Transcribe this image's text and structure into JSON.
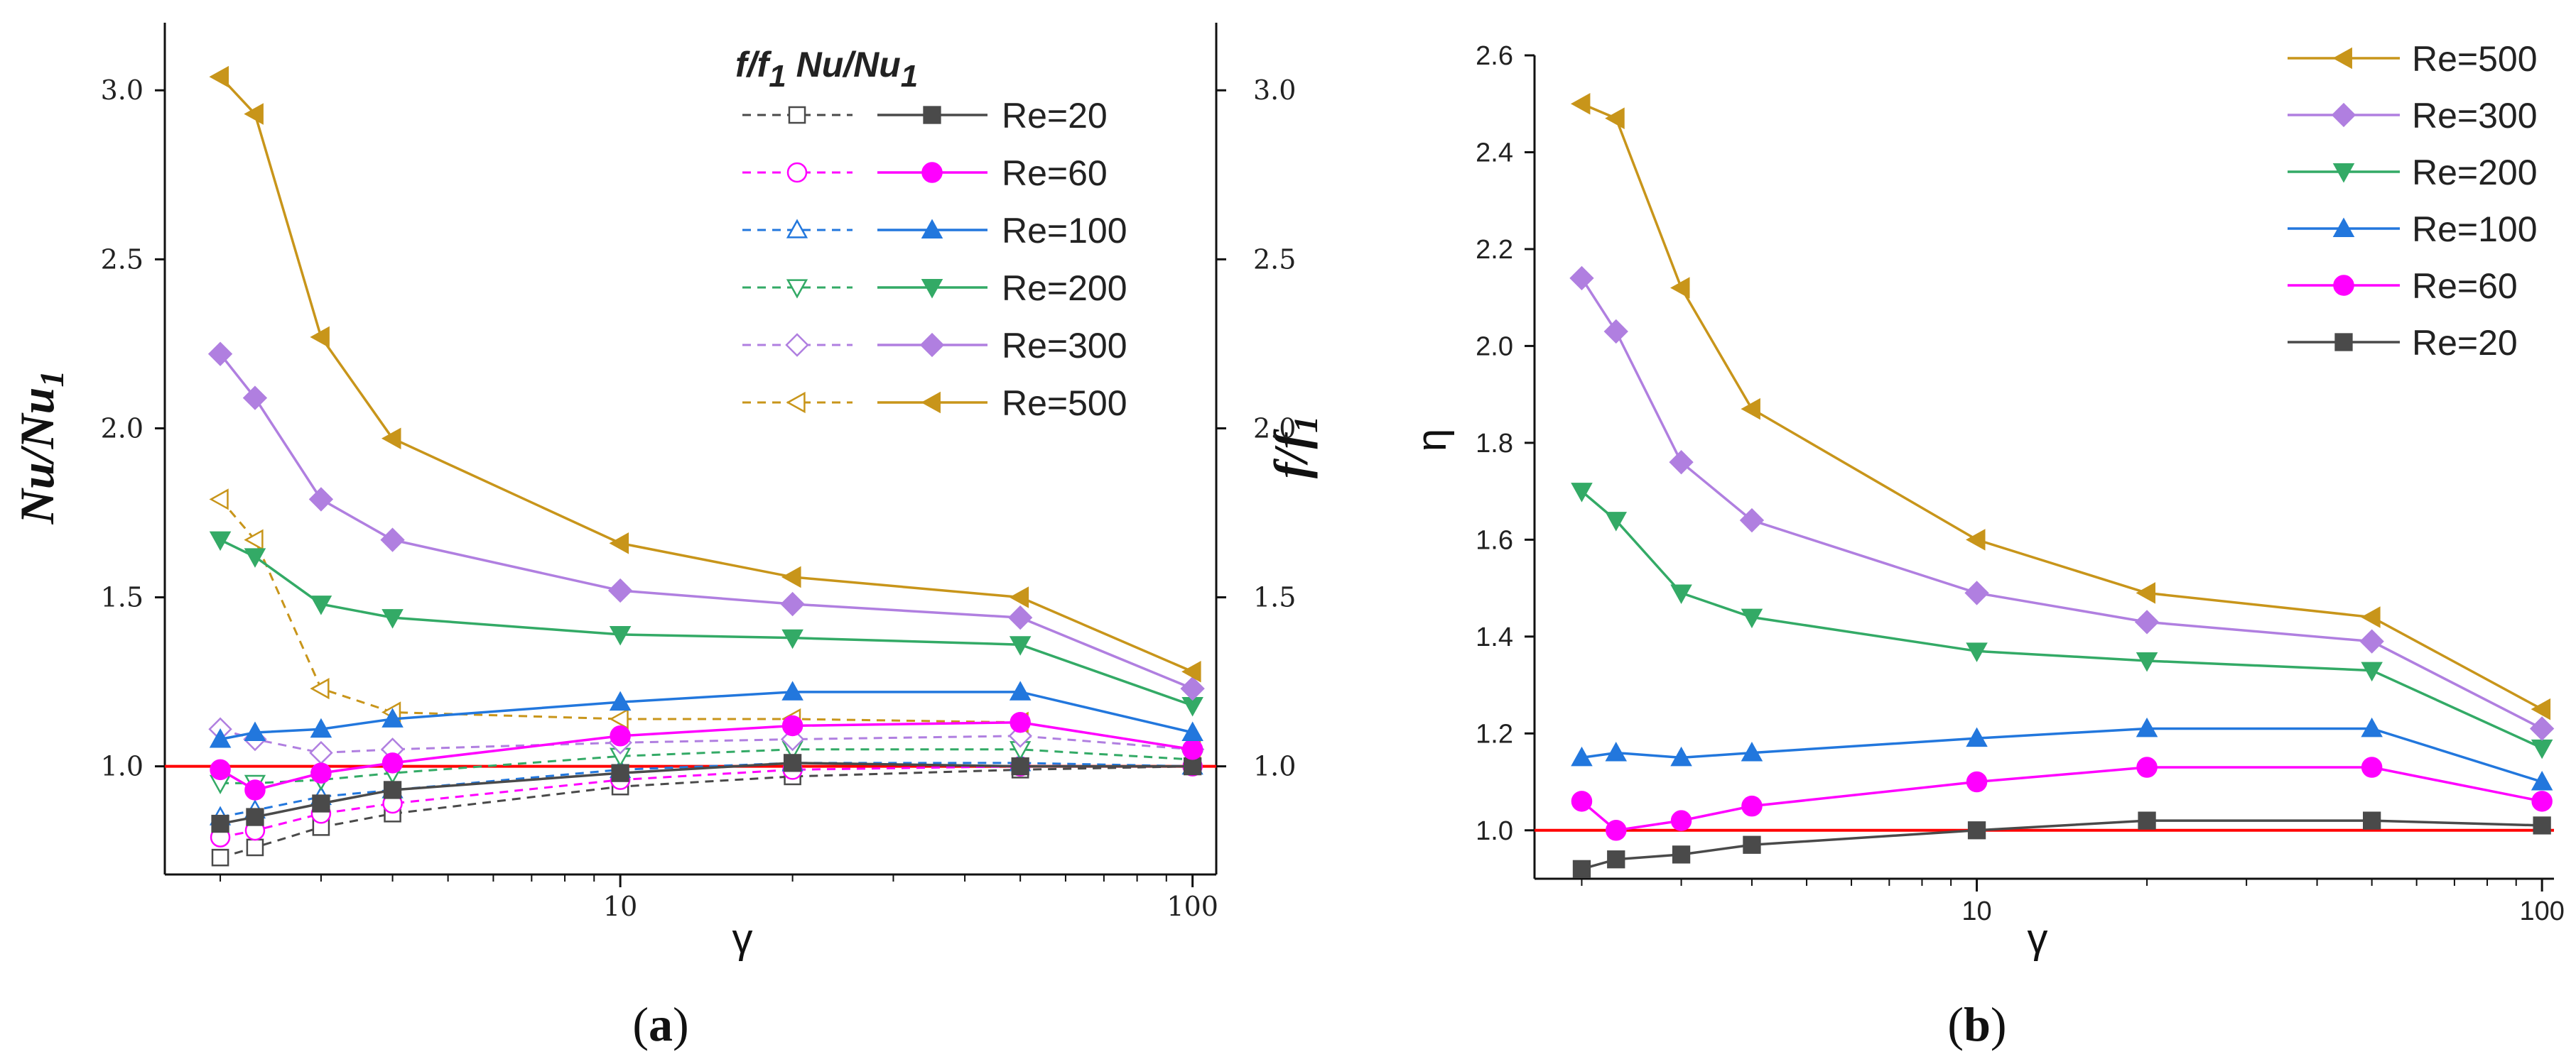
{
  "captions": {
    "a_open": "(",
    "a_letter": "a",
    "a_close": ")",
    "b_open": "(",
    "b_letter": "b",
    "b_close": ")"
  },
  "chart_data": [
    {
      "type": "line",
      "panel": "a",
      "xscale": "log",
      "xlabel": "γ",
      "xlim": [
        1.6,
        110
      ],
      "xticks": [
        {
          "v": 10,
          "label": "10"
        },
        {
          "v": 100,
          "label": "100"
        }
      ],
      "ylabel_left": "Nu/Nu",
      "ylabel_left_sub": "1",
      "ylabel_right": "f/f",
      "ylabel_right_sub": "1",
      "ylim": [
        0.68,
        3.2
      ],
      "yticks": [
        {
          "v": 1.0,
          "label": "1.0"
        },
        {
          "v": 1.5,
          "label": "1.5"
        },
        {
          "v": 2.0,
          "label": "2.0"
        },
        {
          "v": 2.5,
          "label": "2.5"
        },
        {
          "v": 3.0,
          "label": "3.0"
        }
      ],
      "reference_line": 1.0,
      "legend_header": "f/f1 Nu/Nu1",
      "legend_header_parts": [
        "f/f",
        "1",
        "Nu/Nu",
        "1"
      ],
      "x": [
        2,
        2.3,
        3,
        4,
        10,
        20,
        50,
        100
      ],
      "series": [
        {
          "name": "Re=20",
          "color": "#4a4a4a",
          "marker": "square",
          "nu": [
            0.83,
            0.85,
            0.89,
            0.93,
            0.98,
            1.01,
            1.0,
            1.0
          ],
          "f": [
            0.73,
            0.76,
            0.82,
            0.86,
            0.94,
            0.97,
            0.99,
            1.0
          ]
        },
        {
          "name": "Re=60",
          "color": "#ff00ff",
          "marker": "circle",
          "nu": [
            0.99,
            0.93,
            0.98,
            1.01,
            1.09,
            1.12,
            1.13,
            1.05
          ],
          "f": [
            0.79,
            0.81,
            0.86,
            0.89,
            0.96,
            0.99,
            1.0,
            1.0
          ]
        },
        {
          "name": "Re=100",
          "color": "#2277dd",
          "marker": "triangle-up",
          "nu": [
            1.08,
            1.1,
            1.11,
            1.14,
            1.19,
            1.22,
            1.22,
            1.1
          ],
          "f": [
            0.85,
            0.87,
            0.91,
            0.93,
            0.99,
            1.01,
            1.01,
            1.0
          ]
        },
        {
          "name": "Re=200",
          "color": "#33aa66",
          "marker": "triangle-down",
          "nu": [
            1.67,
            1.62,
            1.48,
            1.44,
            1.39,
            1.38,
            1.36,
            1.18
          ],
          "f": [
            0.95,
            0.95,
            0.96,
            0.98,
            1.03,
            1.05,
            1.05,
            1.02
          ]
        },
        {
          "name": "Re=300",
          "color": "#b07fe0",
          "marker": "diamond",
          "nu": [
            2.22,
            2.09,
            1.79,
            1.67,
            1.52,
            1.48,
            1.44,
            1.23
          ],
          "f": [
            1.11,
            1.08,
            1.04,
            1.05,
            1.07,
            1.08,
            1.09,
            1.05
          ]
        },
        {
          "name": "Re=500",
          "color": "#c8951a",
          "marker": "triangle-left",
          "nu": [
            3.04,
            2.93,
            2.27,
            1.97,
            1.66,
            1.56,
            1.5,
            1.28
          ],
          "f": [
            1.79,
            1.67,
            1.23,
            1.16,
            1.14,
            1.14,
            1.13,
            1.05
          ]
        }
      ]
    },
    {
      "type": "line",
      "panel": "b",
      "xscale": "log",
      "xlabel": "γ",
      "xlim": [
        1.65,
        105
      ],
      "xticks": [
        {
          "v": 10,
          "label": "10"
        },
        {
          "v": 100,
          "label": "100"
        }
      ],
      "ylabel": "η",
      "ylim": [
        0.9,
        2.6
      ],
      "yticks": [
        {
          "v": 1.0,
          "label": "1.0"
        },
        {
          "v": 1.2,
          "label": "1.2"
        },
        {
          "v": 1.4,
          "label": "1.4"
        },
        {
          "v": 1.6,
          "label": "1.6"
        },
        {
          "v": 1.8,
          "label": "1.8"
        },
        {
          "v": 2.0,
          "label": "2.0"
        },
        {
          "v": 2.2,
          "label": "2.2"
        },
        {
          "v": 2.4,
          "label": "2.4"
        },
        {
          "v": 2.6,
          "label": "2.6"
        }
      ],
      "reference_line": 1.0,
      "x": [
        2,
        2.3,
        3,
        4,
        10,
        20,
        50,
        100
      ],
      "series": [
        {
          "name": "Re=500",
          "color": "#c8951a",
          "marker": "triangle-left",
          "values": [
            2.5,
            2.47,
            2.12,
            1.87,
            1.6,
            1.49,
            1.44,
            1.25
          ]
        },
        {
          "name": "Re=300",
          "color": "#b07fe0",
          "marker": "diamond",
          "values": [
            2.14,
            2.03,
            1.76,
            1.64,
            1.49,
            1.43,
            1.39,
            1.21
          ]
        },
        {
          "name": "Re=200",
          "color": "#33aa66",
          "marker": "triangle-down",
          "values": [
            1.7,
            1.64,
            1.49,
            1.44,
            1.37,
            1.35,
            1.33,
            1.17
          ]
        },
        {
          "name": "Re=100",
          "color": "#2277dd",
          "marker": "triangle-up",
          "values": [
            1.15,
            1.16,
            1.15,
            1.16,
            1.19,
            1.21,
            1.21,
            1.1
          ]
        },
        {
          "name": "Re=60",
          "color": "#ff00ff",
          "marker": "circle",
          "values": [
            1.06,
            1.0,
            1.02,
            1.05,
            1.1,
            1.13,
            1.13,
            1.06
          ]
        },
        {
          "name": "Re=20",
          "color": "#4a4a4a",
          "marker": "square",
          "values": [
            0.92,
            0.94,
            0.95,
            0.97,
            1.0,
            1.02,
            1.02,
            1.01
          ]
        }
      ]
    }
  ]
}
